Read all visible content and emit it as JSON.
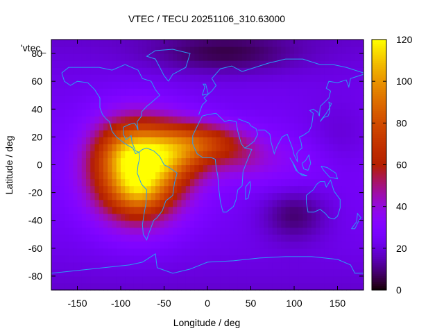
{
  "chart_data": {
    "type": "heatmap",
    "title": "VTEC / TECU 20251106_310.63000",
    "xlabel": "Longitude / deg",
    "ylabel": "Latitude / deg",
    "xlim": [
      -180,
      180
    ],
    "ylim": [
      -90,
      90
    ],
    "xticks": [
      -150,
      -100,
      -50,
      0,
      50,
      100,
      150
    ],
    "yticks": [
      -80,
      -60,
      -40,
      -20,
      0,
      20,
      40,
      60,
      80
    ],
    "cbar_ticks": [
      0,
      20,
      40,
      60,
      80,
      100,
      120
    ],
    "cbar_range": [
      0,
      120
    ],
    "key_label": "'vtec_",
    "coastline_color": "#2a9df4",
    "grid": false,
    "palette": "black-purple-red-orange-yellow",
    "features": [
      {
        "lon": -80,
        "lat": -5,
        "amp": 82,
        "slon": 36,
        "slat": 24
      },
      {
        "lon": -95,
        "lat": 10,
        "amp": 20,
        "slon": 25,
        "slat": 15
      },
      {
        "lon": -35,
        "lat": 10,
        "amp": 42,
        "slon": 32,
        "slat": 14
      },
      {
        "lon": 5,
        "lat": 17,
        "amp": 28,
        "slon": 30,
        "slat": 9
      },
      {
        "lon": 40,
        "lat": 5,
        "amp": 12,
        "slon": 25,
        "slat": 10
      },
      {
        "lon": 100,
        "lat": 2,
        "amp": 8,
        "slon": 50,
        "slat": 15
      },
      {
        "lon": -80,
        "lat": -20,
        "amp": 15,
        "slon": 20,
        "slat": 10
      }
    ],
    "background": 26,
    "low_spots": [
      {
        "lon": 100,
        "lat": -35,
        "amp": -16,
        "slon": 28,
        "slat": 14
      },
      {
        "lon": 20,
        "lat": 80,
        "amp": -14,
        "slon": 60,
        "slat": 10
      },
      {
        "lon": 150,
        "lat": 15,
        "amp": -8,
        "slon": 30,
        "slat": 20
      }
    ]
  }
}
